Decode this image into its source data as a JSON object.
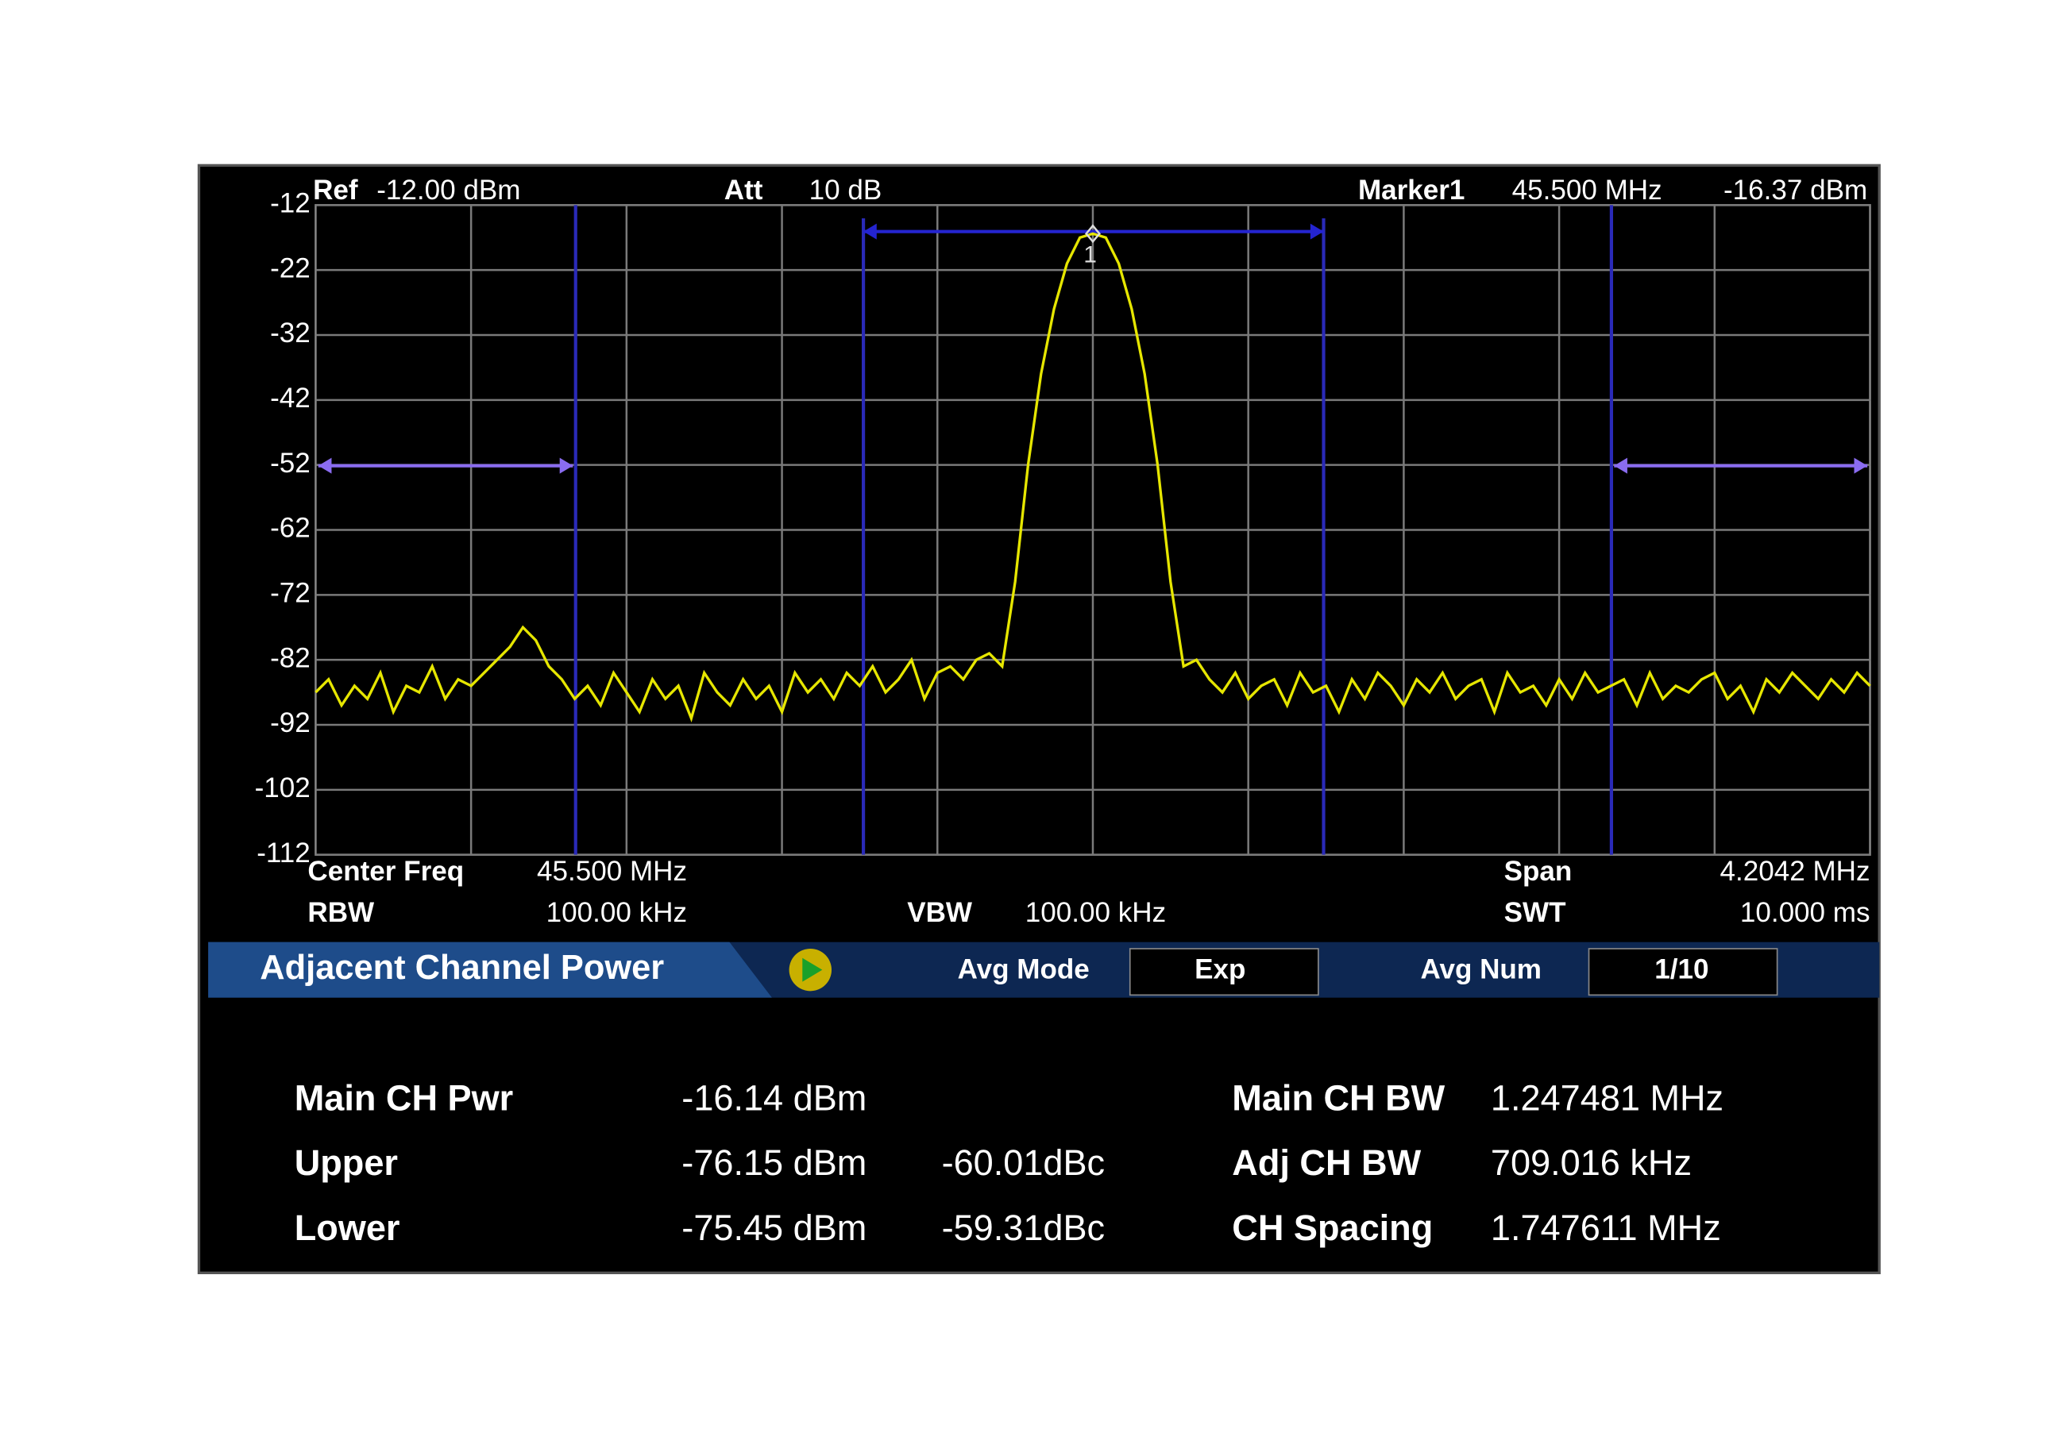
{
  "header": {
    "ref_label": "Ref",
    "ref_value": "-12.00 dBm",
    "att_label": "Att",
    "att_value": "10 dB",
    "marker_label": "Marker1",
    "marker_freq": "45.500 MHz",
    "marker_level": "-16.37 dBm"
  },
  "chart_data": {
    "type": "line",
    "ylim": [
      -112,
      -12
    ],
    "yticks": [
      -12,
      -22,
      -32,
      -42,
      -52,
      -62,
      -72,
      -82,
      -92,
      -102,
      -112
    ],
    "grid": true,
    "marker_label": "1",
    "series": [
      {
        "color": "#e6e600",
        "values": [
          -87,
          -85,
          -89,
          -86,
          -88,
          -84,
          -90,
          -86,
          -87,
          -83,
          -88,
          -85,
          -86,
          -84,
          -82,
          -80,
          -77,
          -79,
          -83,
          -85,
          -88,
          -86,
          -89,
          -84,
          -87,
          -90,
          -85,
          -88,
          -86,
          -91,
          -84,
          -87,
          -89,
          -85,
          -88,
          -86,
          -90,
          -84,
          -87,
          -85,
          -88,
          -84,
          -86,
          -83,
          -87,
          -85,
          -82,
          -88,
          -84,
          -83,
          -85,
          -82,
          -81,
          -83,
          -70,
          -52,
          -38,
          -28,
          -21,
          -17,
          -16.4,
          -17,
          -21,
          -28,
          -38,
          -52,
          -70,
          -83,
          -82,
          -85,
          -87,
          -84,
          -88,
          -86,
          -85,
          -89,
          -84,
          -87,
          -86,
          -90,
          -85,
          -88,
          -84,
          -86,
          -89,
          -85,
          -87,
          -84,
          -88,
          -86,
          -85,
          -90,
          -84,
          -87,
          -86,
          -89,
          -85,
          -88,
          -84,
          -87,
          -86,
          -85,
          -89,
          -84,
          -88,
          -86,
          -87,
          -85,
          -84,
          -88,
          -86,
          -90,
          -85,
          -87,
          -84,
          -86,
          -88,
          -85,
          -87,
          -84,
          -86
        ]
      }
    ]
  },
  "settings": {
    "center_freq_label": "Center Freq",
    "center_freq": "45.500 MHz",
    "span_label": "Span",
    "span": "4.2042 MHz",
    "rbw_label": "RBW",
    "rbw": "100.00 kHz",
    "vbw_label": "VBW",
    "vbw": "100.00 kHz",
    "swt_label": "SWT",
    "swt": "10.000 ms"
  },
  "panel": {
    "title": "Adjacent Channel Power",
    "avg_mode_label": "Avg Mode",
    "avg_mode": "Exp",
    "avg_num_label": "Avg Num",
    "avg_num": "1/10"
  },
  "results": {
    "rows": [
      {
        "label": "Main CH Pwr",
        "power": "-16.14 dBm",
        "param": "Main CH BW",
        "param_value": "1.247481 MHz"
      },
      {
        "label": "Upper",
        "power": "-76.15 dBm",
        "relative": "-60.01dBc",
        "param": "Adj CH BW",
        "param_value": "709.016 kHz"
      },
      {
        "label": "Lower",
        "power": "-75.45 dBm",
        "relative": "-59.31dBc",
        "param": "CH Spacing",
        "param_value": "1.747611 MHz"
      }
    ]
  }
}
